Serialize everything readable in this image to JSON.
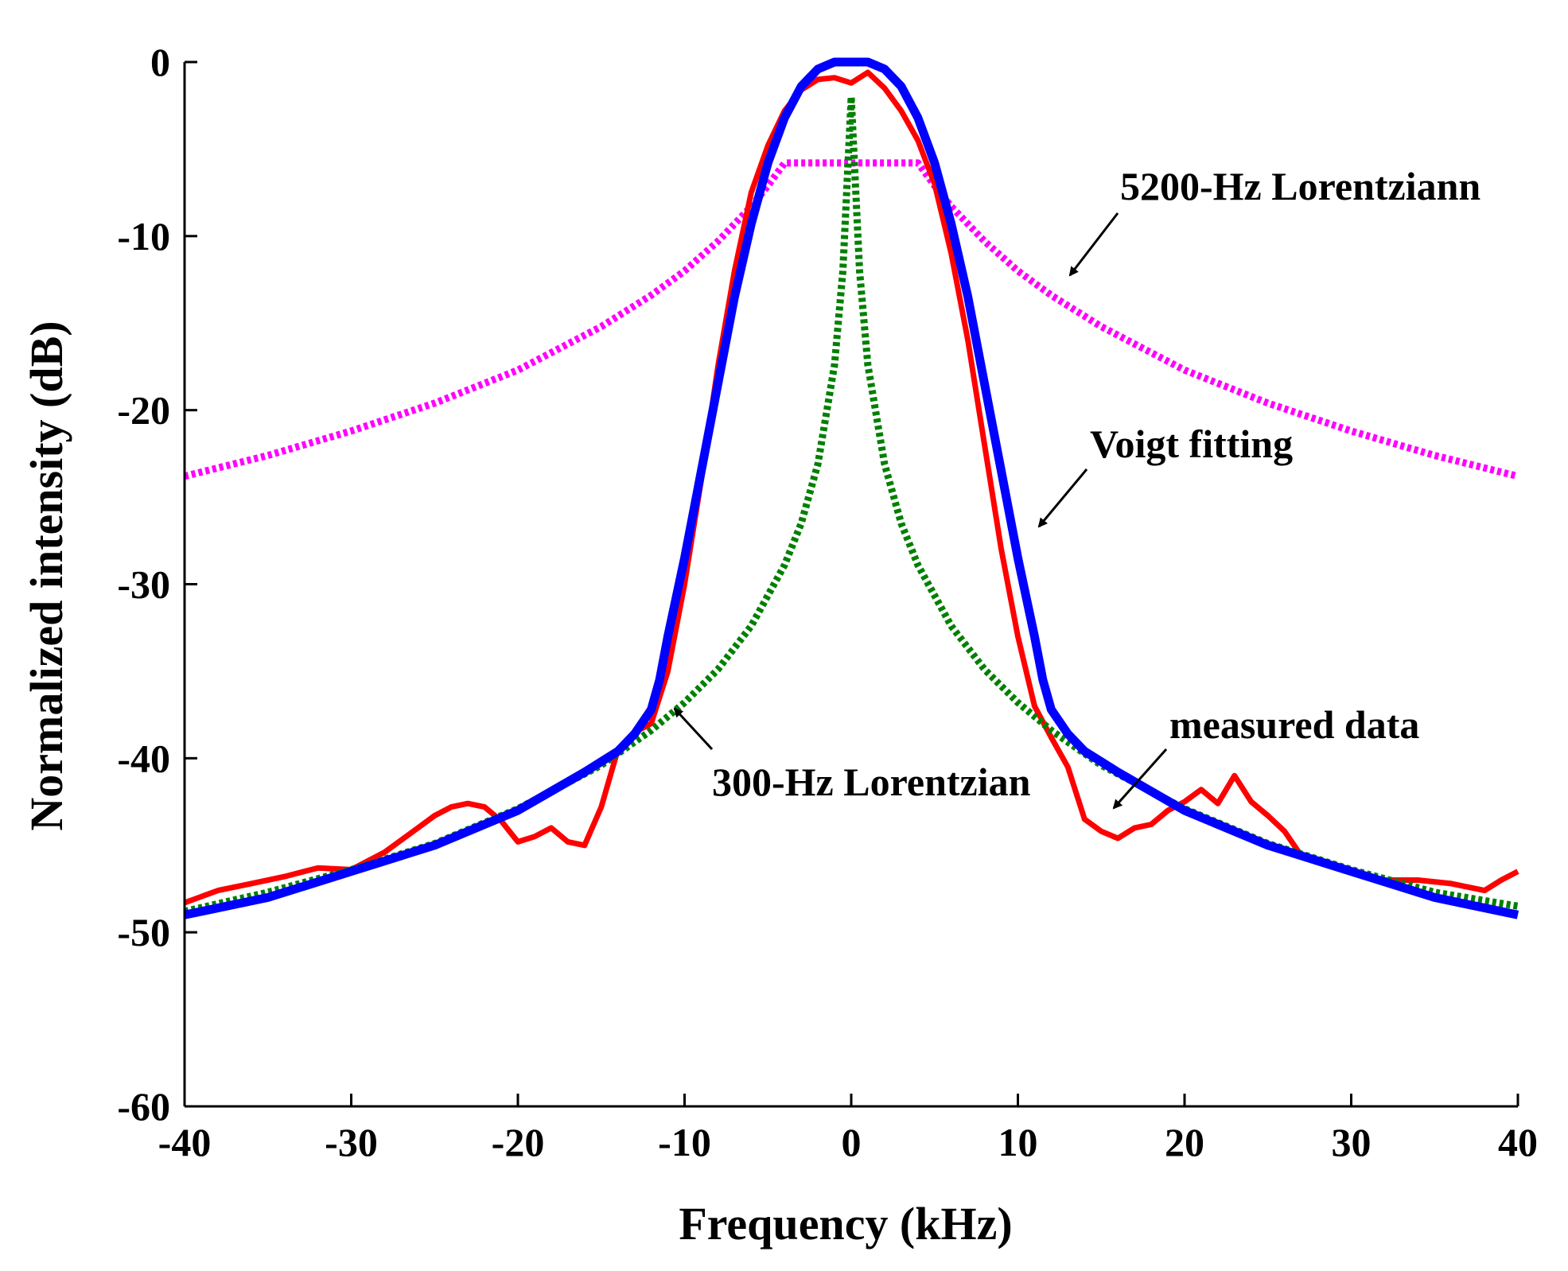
{
  "chart_data": {
    "type": "line",
    "title": "",
    "xlabel": "Frequency (kHz)",
    "ylabel": "Normalized intensity (dB)",
    "xlim": [
      -40,
      40
    ],
    "ylim": [
      -60,
      0
    ],
    "xticks": [
      -40,
      -30,
      -20,
      -10,
      0,
      10,
      20,
      30,
      40
    ],
    "yticks": [
      0,
      -10,
      -20,
      -30,
      -40,
      -50,
      -60
    ],
    "grid": false,
    "series": [
      {
        "name": "5200-Hz Lorentziann",
        "color": "#ff00ff",
        "style": "dotted",
        "x": [
          -40,
          -35,
          -30,
          -25,
          -20,
          -15,
          -12,
          -10,
          -8,
          -6,
          -5,
          -4,
          4,
          5,
          6,
          8,
          10,
          12,
          15,
          20,
          25,
          30,
          35,
          40
        ],
        "y": [
          -23.8,
          -22.6,
          -21.2,
          -19.6,
          -17.7,
          -15.2,
          -13.4,
          -12.0,
          -10.3,
          -8.3,
          -7.1,
          -5.8,
          -5.8,
          -7.1,
          -8.3,
          -10.3,
          -12.0,
          -13.4,
          -15.2,
          -17.7,
          -19.6,
          -21.2,
          -22.6,
          -23.8
        ]
      },
      {
        "name": "300-Hz Lorentzian",
        "color": "#008000",
        "style": "dotted",
        "x": [
          -40,
          -35,
          -30,
          -25,
          -20,
          -15,
          -12,
          -10,
          -8,
          -6,
          -4,
          -3,
          -2,
          -1,
          -0.5,
          0,
          0.5,
          1,
          2,
          3,
          4,
          6,
          8,
          10,
          12,
          15,
          20,
          25,
          30,
          35,
          40
        ],
        "y": [
          -48.8,
          -47.7,
          -46.4,
          -44.9,
          -42.9,
          -40.4,
          -38.4,
          -36.8,
          -34.9,
          -32.4,
          -28.9,
          -26.5,
          -23.1,
          -17.4,
          -12.0,
          -2.0,
          -12.0,
          -17.4,
          -23.1,
          -26.5,
          -28.9,
          -32.4,
          -34.9,
          -36.8,
          -38.4,
          -40.4,
          -42.9,
          -44.9,
          -46.4,
          -47.7,
          -48.5
        ]
      },
      {
        "name": "measured data",
        "color": "#ff0000",
        "style": "solid",
        "x": [
          -40,
          -38,
          -36,
          -34,
          -32,
          -30,
          -28,
          -26,
          -25,
          -24,
          -23,
          -22,
          -21,
          -20,
          -19,
          -18,
          -17,
          -16,
          -15,
          -14,
          -13,
          -12,
          -11,
          -10,
          -9,
          -8,
          -7,
          -6,
          -5,
          -4,
          -3,
          -2,
          -1,
          0,
          1,
          2,
          3,
          4,
          5,
          6,
          7,
          8,
          9,
          10,
          11,
          12,
          13,
          14,
          15,
          16,
          17,
          18,
          19,
          20,
          21,
          22,
          23,
          24,
          25,
          26,
          27,
          28,
          30,
          32,
          34,
          36,
          38,
          39,
          40
        ],
        "y": [
          -48.3,
          -47.6,
          -47.2,
          -46.8,
          -46.3,
          -46.4,
          -45.4,
          -44.0,
          -43.3,
          -42.8,
          -42.6,
          -42.8,
          -43.6,
          -44.8,
          -44.5,
          -44.0,
          -44.8,
          -45.0,
          -42.8,
          -39.5,
          -38.5,
          -38.0,
          -35.0,
          -30.0,
          -24.0,
          -17.5,
          -12.0,
          -7.5,
          -4.8,
          -2.8,
          -1.6,
          -1.0,
          -0.9,
          -1.2,
          -0.6,
          -1.5,
          -2.8,
          -4.5,
          -7.0,
          -11.0,
          -16.0,
          -22.0,
          -28.0,
          -33.0,
          -37.0,
          -38.8,
          -40.5,
          -43.5,
          -44.2,
          -44.6,
          -44.0,
          -43.8,
          -43.0,
          -42.5,
          -41.8,
          -42.6,
          -41.0,
          -42.5,
          -43.3,
          -44.2,
          -45.6,
          -45.8,
          -46.5,
          -47.0,
          -47.0,
          -47.2,
          -47.6,
          -47.0,
          -46.5
        ]
      },
      {
        "name": "Voigt fitting",
        "color": "#0000ff",
        "style": "solid",
        "x": [
          -40,
          -35,
          -30,
          -25,
          -20,
          -16,
          -14,
          -13,
          -12,
          -11.5,
          -11,
          -10,
          -9,
          -8,
          -7,
          -6,
          -5,
          -4,
          -3,
          -2,
          -1,
          0,
          1,
          2,
          3,
          4,
          5,
          6,
          7,
          8,
          9,
          10,
          11,
          11.5,
          12,
          13,
          14,
          16,
          20,
          25,
          30,
          35,
          40
        ],
        "y": [
          -49.0,
          -48.0,
          -46.5,
          -45.0,
          -43.0,
          -40.8,
          -39.6,
          -38.6,
          -37.2,
          -35.5,
          -33.0,
          -28.5,
          -23.5,
          -18.5,
          -13.5,
          -9.3,
          -5.8,
          -3.2,
          -1.4,
          -0.4,
          0.0,
          0.0,
          0.0,
          -0.4,
          -1.4,
          -3.2,
          -5.8,
          -9.3,
          -13.5,
          -18.5,
          -23.5,
          -28.5,
          -33.0,
          -35.5,
          -37.2,
          -38.6,
          -39.6,
          -40.8,
          -43.0,
          -45.0,
          -46.5,
          -48.0,
          -49.0
        ]
      }
    ],
    "annotations": [
      {
        "text": "5200-Hz Lorentziann",
        "series": "5200-Hz Lorentziann"
      },
      {
        "text": "Voigt fitting",
        "series": "Voigt fitting"
      },
      {
        "text": "measured data",
        "series": "measured data"
      },
      {
        "text": "300-Hz Lorentzian",
        "series": "300-Hz Lorentzian"
      }
    ]
  }
}
